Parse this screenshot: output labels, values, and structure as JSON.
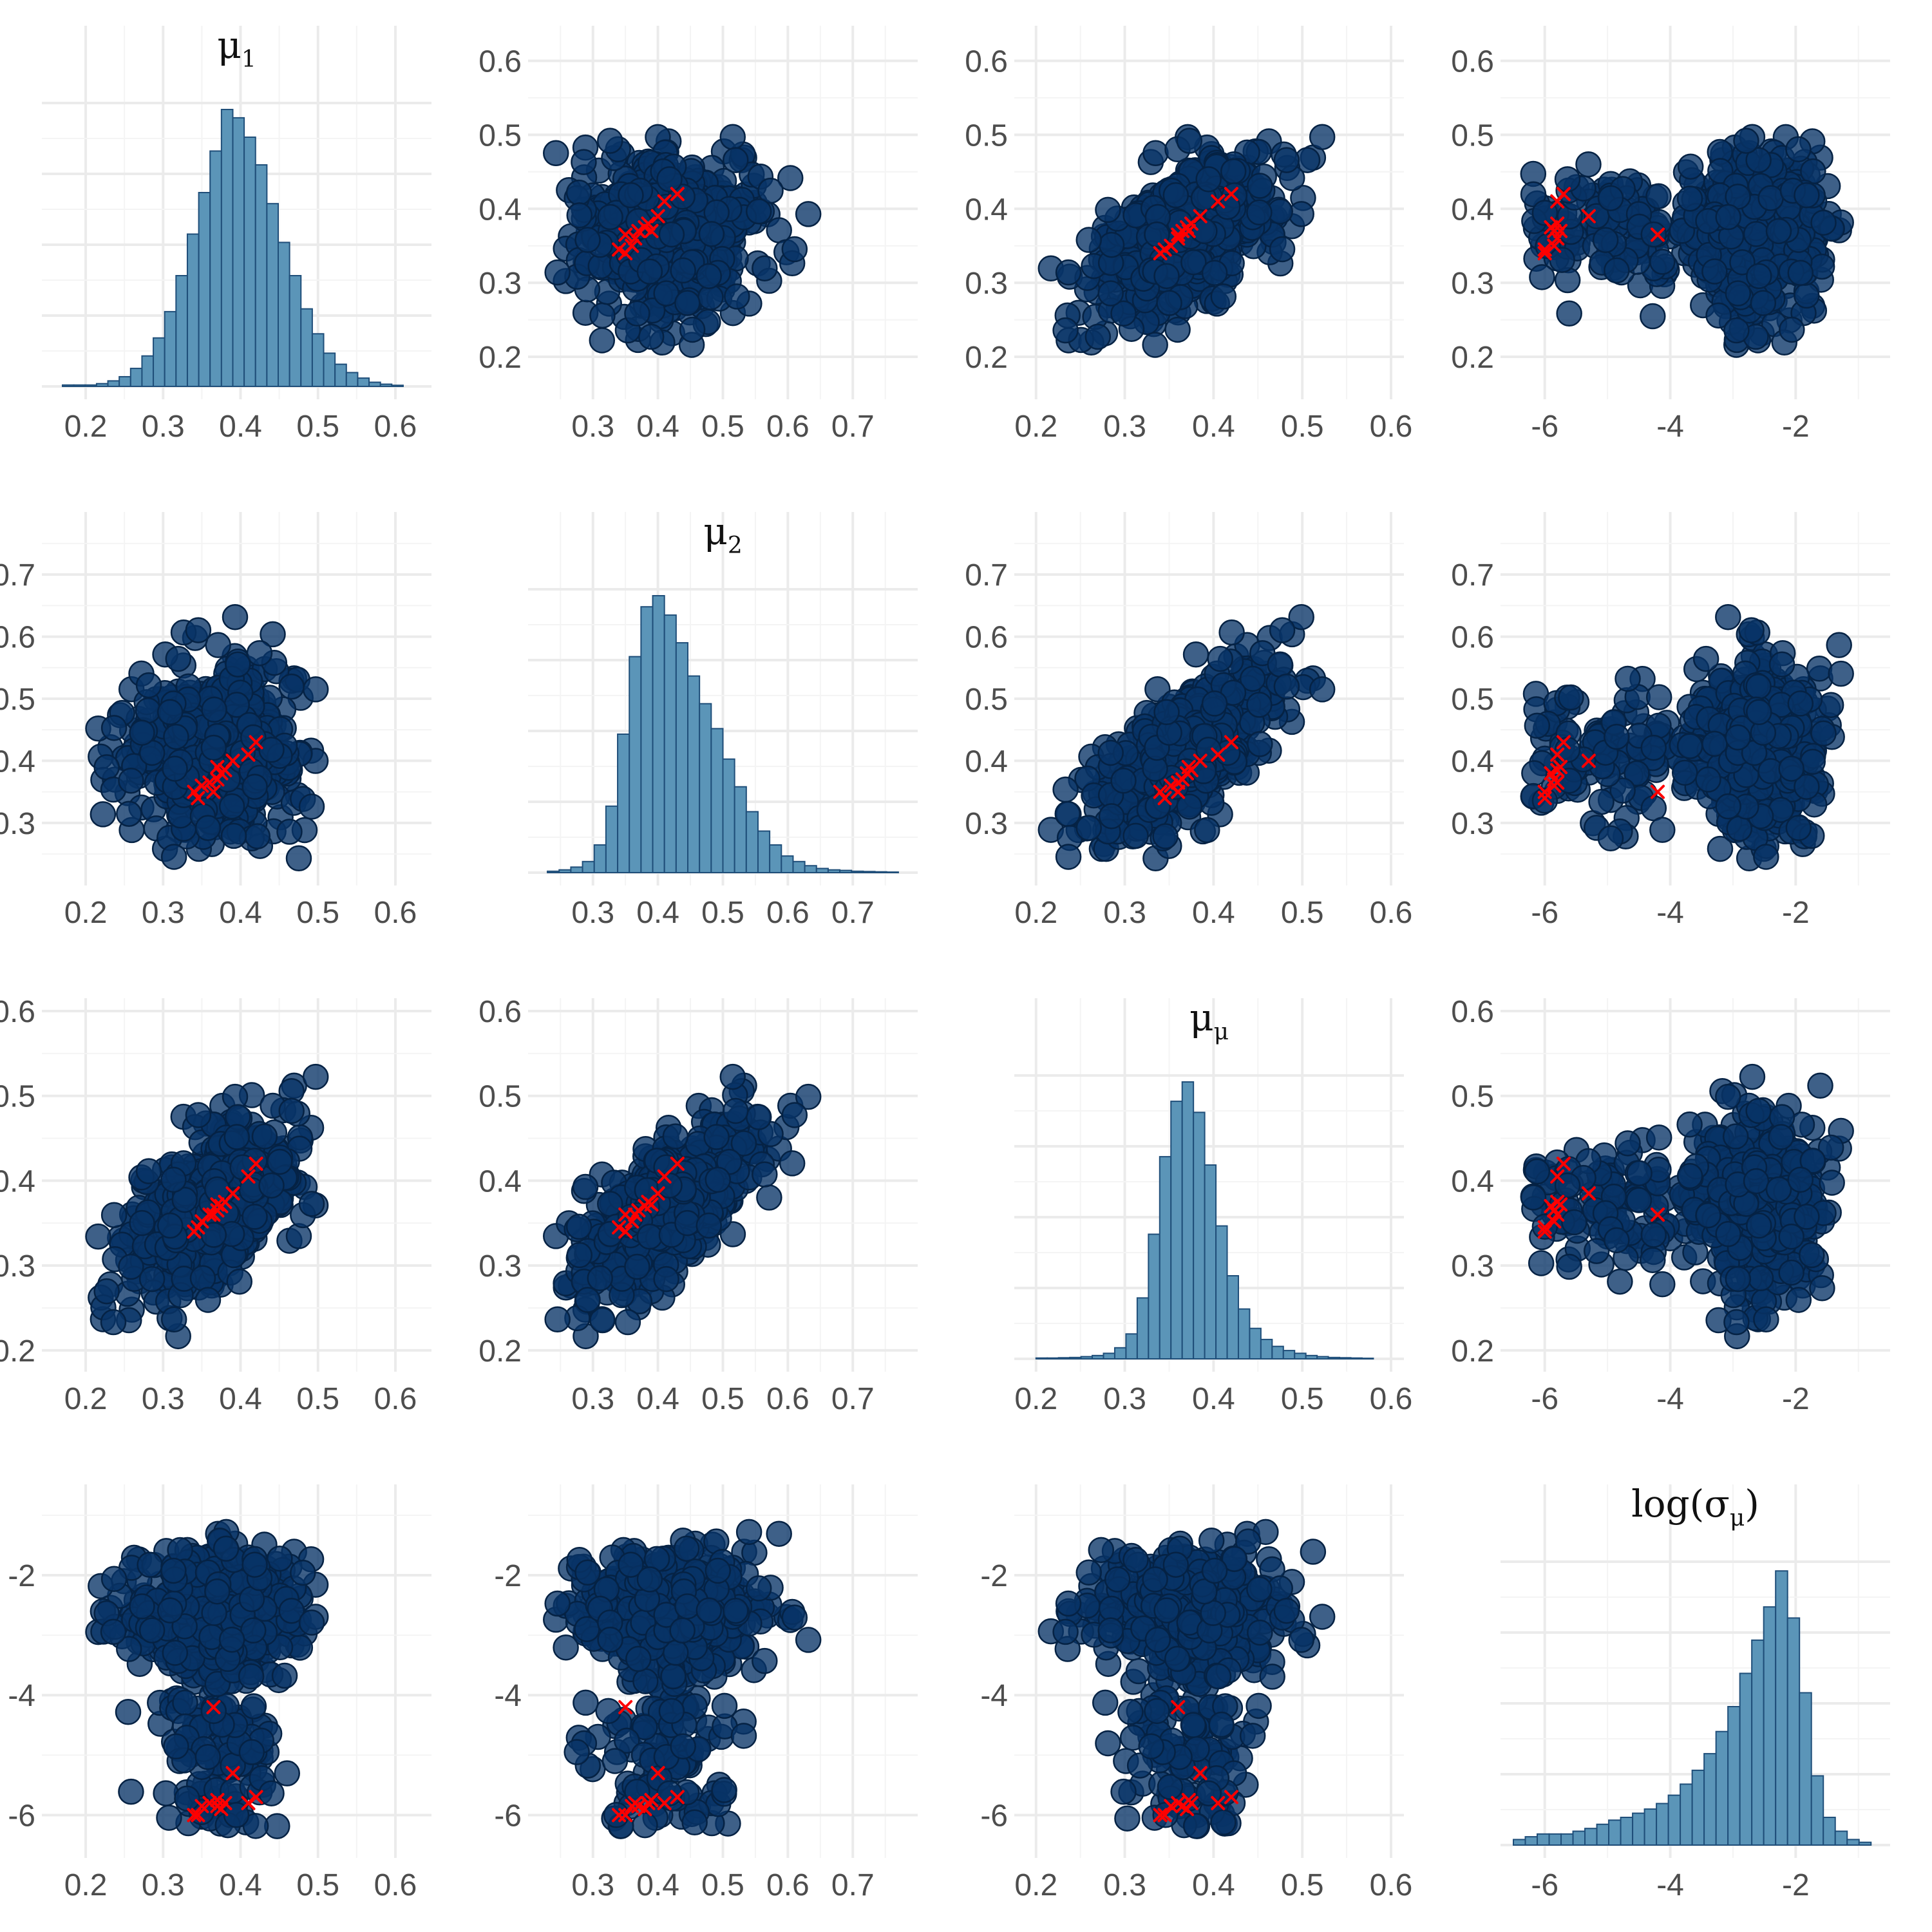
{
  "colors": {
    "point_fill": "#083366",
    "point_stroke": "#052244",
    "bar_fill": "#5b95b8",
    "bar_stroke": "#1f4e79",
    "cross": "#ff0000"
  },
  "params": [
    {
      "key": "mu1",
      "title_main": "μ",
      "title_sub": "1",
      "title_pre": "",
      "title_post": "",
      "lim": [
        0.16,
        0.63
      ],
      "ticks": [
        0.2,
        0.3,
        0.4,
        0.5,
        0.6
      ],
      "tick_labels": [
        "0.2",
        "0.3",
        "0.4",
        "0.5",
        "0.6"
      ]
    },
    {
      "key": "mu2",
      "title_main": "μ",
      "title_sub": "2",
      "title_pre": "",
      "title_post": "",
      "lim": [
        0.22,
        0.78
      ],
      "ticks": [
        0.3,
        0.4,
        0.5,
        0.6,
        0.7
      ],
      "tick_labels": [
        "0.3",
        "0.4",
        "0.5",
        "0.6",
        "0.7"
      ]
    },
    {
      "key": "mumu",
      "title_main": "μ",
      "title_sub": "μ",
      "title_pre": "",
      "title_post": "",
      "lim": [
        0.19,
        0.6
      ],
      "ticks": [
        0.2,
        0.3,
        0.4,
        0.5,
        0.6
      ],
      "tick_labels": [
        "0.2",
        "0.3",
        "0.4",
        "0.5",
        "0.6"
      ]
    },
    {
      "key": "logsigma",
      "title_main": "σ",
      "title_sub": "μ",
      "title_pre": "log(",
      "title_post": ")",
      "lim": [
        -6.5,
        -0.7
      ],
      "ticks": [
        -6,
        -4,
        -2
      ],
      "tick_labels": [
        "-6",
        "-4",
        "-2"
      ]
    }
  ],
  "chart_data": {
    "type": "scatter",
    "layout": "pairs-matrix 4x4, histograms on diagonal, scatter plots off-diagonal with red cross markers",
    "variables": [
      "μ1",
      "μ2",
      "μμ",
      "log(σμ)"
    ],
    "posterior_summary": {
      "mu1": {
        "center": 0.37,
        "spread": 0.055
      },
      "mu2": {
        "center": 0.415,
        "spread": 0.065
      },
      "mumu": {
        "center": 0.38,
        "spread": 0.04
      },
      "logsigma": {
        "mode": -2.5,
        "range": [
          -6.3,
          -0.8
        ]
      }
    },
    "histograms": [
      {
        "variable": "μ1",
        "bins": 30,
        "range": [
          0.17,
          0.61
        ],
        "relative_heights": [
          0.005,
          0.005,
          0.005,
          0.01,
          0.02,
          0.035,
          0.065,
          0.11,
          0.175,
          0.27,
          0.4,
          0.55,
          0.7,
          0.85,
          1.0,
          0.97,
          0.9,
          0.8,
          0.66,
          0.52,
          0.4,
          0.28,
          0.19,
          0.12,
          0.08,
          0.05,
          0.03,
          0.015,
          0.008,
          0.004
        ]
      },
      {
        "variable": "μ2",
        "bins": 30,
        "range": [
          0.23,
          0.77
        ],
        "relative_heights": [
          0.005,
          0.01,
          0.02,
          0.04,
          0.1,
          0.24,
          0.5,
          0.78,
          0.96,
          1.0,
          0.93,
          0.83,
          0.71,
          0.61,
          0.52,
          0.41,
          0.31,
          0.22,
          0.15,
          0.1,
          0.06,
          0.04,
          0.025,
          0.015,
          0.01,
          0.008,
          0.005,
          0.004,
          0.003,
          0.002
        ]
      },
      {
        "variable": "μμ",
        "bins": 30,
        "range": [
          0.2,
          0.58
        ],
        "relative_heights": [
          0.003,
          0.003,
          0.004,
          0.005,
          0.008,
          0.012,
          0.02,
          0.04,
          0.09,
          0.22,
          0.45,
          0.73,
          0.93,
          1.0,
          0.89,
          0.7,
          0.48,
          0.3,
          0.18,
          0.11,
          0.07,
          0.045,
          0.03,
          0.02,
          0.012,
          0.008,
          0.005,
          0.004,
          0.003,
          0.002
        ]
      },
      {
        "variable": "log(σμ)",
        "bins": 30,
        "range": [
          -6.5,
          -0.8
        ],
        "relative_heights": [
          0.02,
          0.03,
          0.04,
          0.04,
          0.04,
          0.05,
          0.06,
          0.075,
          0.09,
          0.1,
          0.115,
          0.13,
          0.15,
          0.18,
          0.22,
          0.27,
          0.33,
          0.41,
          0.5,
          0.62,
          0.74,
          0.86,
          0.99,
          0.82,
          0.55,
          0.25,
          0.1,
          0.05,
          0.02,
          0.01
        ]
      }
    ],
    "red_cross_points": [
      {
        "mu1": 0.34,
        "mu2": 0.35,
        "mumu": 0.34,
        "logsigma": -6.0
      },
      {
        "mu1": 0.35,
        "mu2": 0.36,
        "mumu": 0.352,
        "logsigma": -5.85
      },
      {
        "mu1": 0.36,
        "mu2": 0.365,
        "mumu": 0.36,
        "logsigma": -5.8
      },
      {
        "mu1": 0.37,
        "mu2": 0.37,
        "mumu": 0.365,
        "logsigma": -5.85
      },
      {
        "mu1": 0.375,
        "mu2": 0.38,
        "mumu": 0.37,
        "logsigma": -5.9
      },
      {
        "mu1": 0.37,
        "mu2": 0.39,
        "mumu": 0.372,
        "logsigma": -5.75
      },
      {
        "mu1": 0.38,
        "mu2": 0.385,
        "mumu": 0.375,
        "logsigma": -5.8
      },
      {
        "mu1": 0.39,
        "mu2": 0.4,
        "mumu": 0.385,
        "logsigma": -5.3
      },
      {
        "mu1": 0.41,
        "mu2": 0.41,
        "mumu": 0.405,
        "logsigma": -5.8
      },
      {
        "mu1": 0.42,
        "mu2": 0.43,
        "mumu": 0.42,
        "logsigma": -5.7
      },
      {
        "mu1": 0.365,
        "mu2": 0.35,
        "mumu": 0.36,
        "logsigma": -4.2
      },
      {
        "mu1": 0.345,
        "mu2": 0.34,
        "mumu": 0.345,
        "logsigma": -6.0
      }
    ]
  }
}
